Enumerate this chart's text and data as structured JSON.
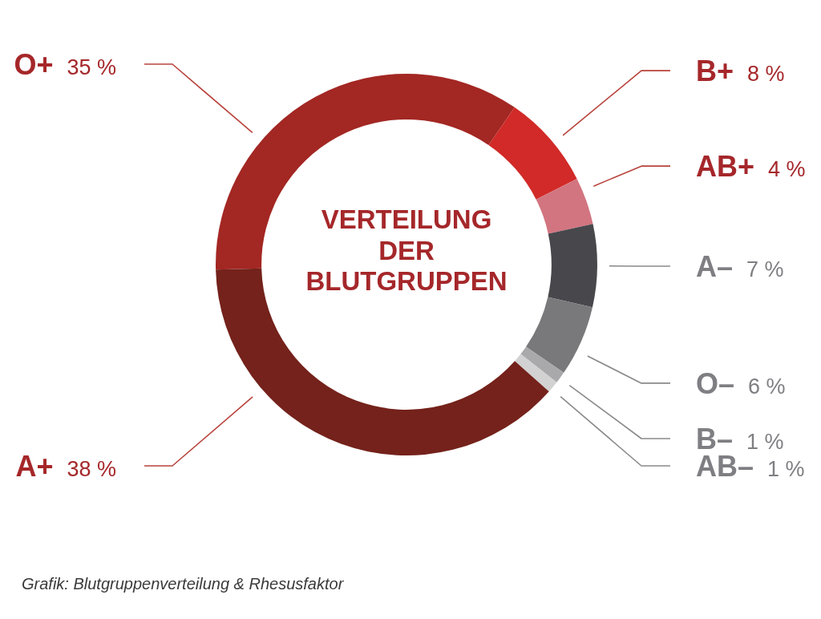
{
  "chart_data": {
    "type": "donut",
    "title": "VERTEILUNG DER BLUTGRUPPEN",
    "categories": [
      "O+",
      "B+",
      "AB+",
      "A–",
      "O–",
      "B–",
      "AB–",
      "A+"
    ],
    "values": [
      35,
      8,
      4,
      7,
      6,
      1,
      1,
      38
    ],
    "colors": [
      "#a32723",
      "#d12a28",
      "#d27580",
      "#48474c",
      "#79787b",
      "#a9a8ab",
      "#d2d2d3",
      "#74221b"
    ],
    "value_labels": [
      "35 %",
      "8 %",
      "4 %",
      "7 %",
      "6 %",
      "1 %",
      "1 %",
      "38 %"
    ],
    "annotations": [
      "Grafik: Blutgruppenverteilung & Rhesusfaktor"
    ],
    "legend": false
  }
}
